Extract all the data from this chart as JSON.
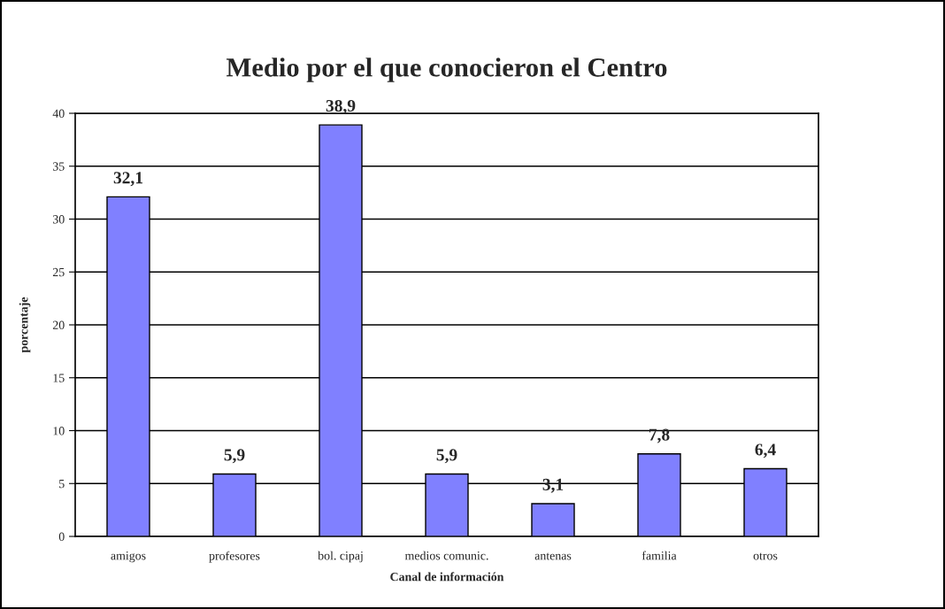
{
  "chart_data": {
    "type": "bar",
    "title": "Medio por el que conocieron el Centro",
    "xlabel": "Canal de información",
    "ylabel": "porcentaje",
    "categories": [
      "amigos",
      "profesores",
      "bol. cipaj",
      "medios comunic.",
      "antenas",
      "familia",
      "otros"
    ],
    "values": [
      32.1,
      5.9,
      38.9,
      5.9,
      3.1,
      7.8,
      6.4
    ],
    "value_labels": [
      "32,1",
      "5,9",
      "38,9",
      "5,9",
      "3,1",
      "7,8",
      "6,4"
    ],
    "color": "#8080ff",
    "ylim": [
      0,
      40
    ],
    "yticks": [
      0,
      5,
      10,
      15,
      20,
      25,
      30,
      35,
      40
    ],
    "grid": "y",
    "legend": false
  }
}
